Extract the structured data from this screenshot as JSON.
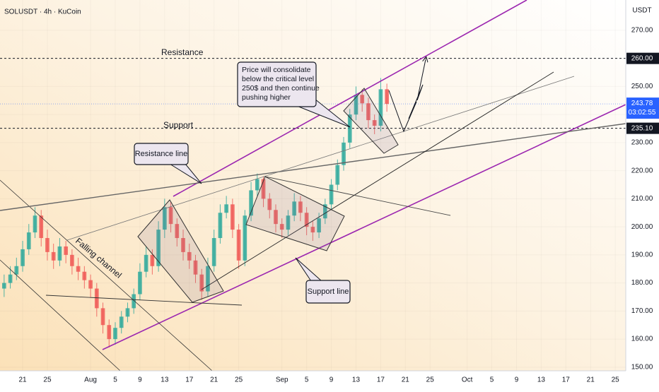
{
  "chart_data": {
    "type": "candlestick",
    "title": "SOLUSDT · 4h · KuCoin",
    "y_axis_label": "USDT",
    "x": [
      -3,
      -2,
      -1,
      0,
      1,
      2,
      3,
      4,
      5,
      6,
      7,
      8,
      9,
      10,
      11,
      12,
      13,
      14,
      15,
      16,
      17,
      18,
      19,
      20,
      21,
      22,
      23,
      24,
      25,
      26,
      27,
      28,
      29,
      30,
      31,
      32,
      33,
      34,
      35,
      36,
      37,
      38,
      39,
      40,
      41,
      42,
      43,
      44,
      45,
      46,
      47,
      48,
      49,
      50,
      51,
      52,
      53,
      54,
      55,
      56,
      57,
      58,
      59
    ],
    "open": [
      178,
      180,
      183,
      186,
      192,
      198,
      204,
      196,
      191,
      188,
      193,
      190,
      186,
      184,
      181,
      178,
      171,
      165,
      160,
      164,
      168,
      171,
      176,
      184,
      190,
      186,
      199,
      207,
      201,
      196,
      191,
      188,
      183,
      177,
      186,
      196,
      205,
      208,
      199,
      188,
      204,
      213,
      217,
      210,
      206,
      201,
      199,
      204,
      209,
      205,
      200,
      198,
      203,
      208,
      215,
      222,
      230,
      240,
      247,
      244,
      238,
      236,
      249
    ],
    "high": [
      183,
      186,
      189,
      195,
      201,
      207,
      206,
      199,
      194,
      196,
      195,
      192,
      189,
      186,
      183,
      180,
      173,
      167,
      166,
      170,
      173,
      178,
      187,
      193,
      192,
      202,
      210,
      209,
      203,
      199,
      194,
      190,
      185,
      189,
      199,
      208,
      211,
      210,
      201,
      206,
      216,
      219,
      218,
      212,
      208,
      203,
      206,
      212,
      211,
      207,
      202,
      205,
      210,
      217,
      224,
      232,
      242,
      250,
      249,
      246,
      240,
      253,
      251
    ],
    "low": [
      175,
      178,
      181,
      184,
      190,
      196,
      193,
      188,
      185,
      186,
      187,
      183,
      181,
      178,
      175,
      168,
      162,
      157,
      158,
      162,
      166,
      169,
      174,
      182,
      183,
      184,
      196,
      198,
      193,
      188,
      185,
      180,
      174,
      175,
      184,
      194,
      203,
      196,
      185,
      186,
      202,
      211,
      207,
      203,
      198,
      196,
      197,
      202,
      202,
      197,
      195,
      196,
      201,
      206,
      213,
      220,
      228,
      238,
      241,
      235,
      233,
      234,
      241
    ],
    "close": [
      180,
      183,
      186,
      192,
      198,
      204,
      196,
      191,
      188,
      193,
      190,
      186,
      184,
      181,
      178,
      171,
      165,
      160,
      164,
      168,
      171,
      176,
      184,
      190,
      186,
      199,
      207,
      201,
      196,
      191,
      188,
      183,
      177,
      186,
      196,
      205,
      208,
      199,
      188,
      204,
      213,
      217,
      210,
      206,
      201,
      199,
      204,
      209,
      205,
      200,
      198,
      203,
      208,
      215,
      222,
      230,
      240,
      247,
      244,
      238,
      236,
      249,
      243.78
    ],
    "up_color": "#26a69a",
    "down_color": "#ef5350",
    "xlim": [
      -3.67,
      97.7
    ],
    "xticks": [
      {
        "value": 0,
        "label": "21"
      },
      {
        "value": 4,
        "label": "25"
      },
      {
        "value": 11,
        "label": "Aug"
      },
      {
        "value": 15,
        "label": "5"
      },
      {
        "value": 19,
        "label": "9"
      },
      {
        "value": 23,
        "label": "13"
      },
      {
        "value": 27,
        "label": "17"
      },
      {
        "value": 31,
        "label": "21"
      },
      {
        "value": 35,
        "label": "25"
      },
      {
        "value": 42,
        "label": "Sep"
      },
      {
        "value": 46,
        "label": "5"
      },
      {
        "value": 50,
        "label": "9"
      },
      {
        "value": 54,
        "label": "13"
      },
      {
        "value": 58,
        "label": "17"
      },
      {
        "value": 62,
        "label": "21"
      },
      {
        "value": 66,
        "label": "25"
      },
      {
        "value": 72,
        "label": "Oct"
      },
      {
        "value": 76,
        "label": "5"
      },
      {
        "value": 80,
        "label": "9"
      },
      {
        "value": 84,
        "label": "13"
      },
      {
        "value": 88,
        "label": "17"
      },
      {
        "value": 92,
        "label": "21"
      },
      {
        "value": 96,
        "label": "25"
      }
    ],
    "ylim": [
      148.7,
      280.8
    ],
    "yticks": [
      {
        "value": 150,
        "label": "150.00"
      },
      {
        "value": 160,
        "label": "160.00"
      },
      {
        "value": 170,
        "label": "170.00"
      },
      {
        "value": 180,
        "label": "180.00"
      },
      {
        "value": 190,
        "label": "190.00"
      },
      {
        "value": 200,
        "label": "200.00"
      },
      {
        "value": 210,
        "label": "210.00"
      },
      {
        "value": 220,
        "label": "220.00"
      },
      {
        "value": 230,
        "label": "230.00"
      },
      {
        "value": 240,
        "label": "240.00"
      },
      {
        "value": 250,
        "label": "250.00"
      },
      {
        "value": 270,
        "label": "270.00"
      }
    ],
    "price_lines": [
      {
        "value": 260,
        "label": "260.00"
      },
      {
        "value": 235.1,
        "label": "235.10"
      }
    ],
    "last_price": 243.78,
    "countdown": "03:02:55",
    "annotations": {
      "resistance": "Resistance",
      "support": "Support",
      "resistance_line": "Resistance line",
      "falling_channel": "Falling channel",
      "support_line": "Support line",
      "note": [
        "Price will consolidate",
        "below the critical level",
        "250$ and then continue",
        "pushing higher"
      ]
    }
  }
}
